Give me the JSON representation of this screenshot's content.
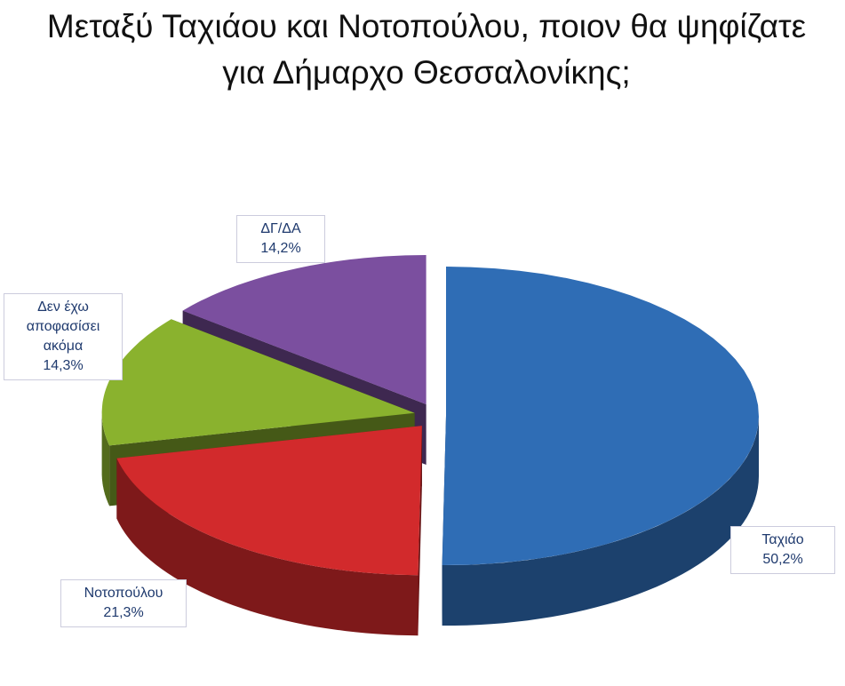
{
  "chart_data": {
    "type": "pie",
    "title": "Μεταξύ Ταχιάου και Νοτοπούλου, ποιον θα ψηφίζατε για Δήμαρχο Θεσσαλονίκης;",
    "categories": [
      "Ταχιάο",
      "Νοτοπούλου",
      "Δεν έχω αποφασίσει ακόμα",
      "ΔΓ/ΔΑ"
    ],
    "values": [
      50.2,
      21.3,
      14.3,
      14.2
    ],
    "value_labels": [
      "50,2%",
      "21,3%",
      "14,3%",
      "14,2%"
    ],
    "colors": [
      "#2f6db5",
      "#d22a2c",
      "#8ab22e",
      "#7b4f9f"
    ]
  }
}
